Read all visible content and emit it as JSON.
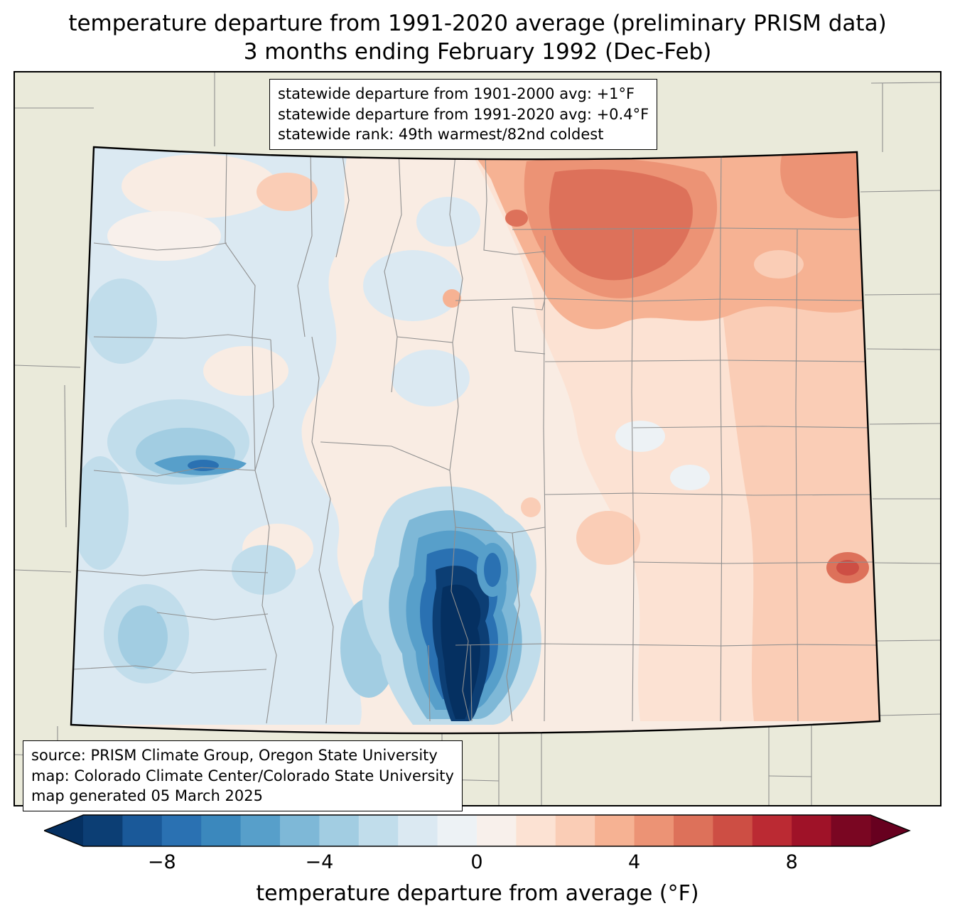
{
  "title": {
    "line1": "temperature departure from 1991-2020 average (preliminary PRISM data)",
    "line2": "3 months ending February 1992 (Dec-Feb)"
  },
  "stats_box": {
    "lines": [
      "statewide departure from 1901-2000 avg: +1°F",
      "statewide departure from 1991-2020 avg: +0.4°F",
      "statewide rank: 49th warmest/82nd coldest"
    ]
  },
  "source_box": {
    "lines": [
      "source: PRISM Climate Group, Oregon State University",
      "map: Colorado Climate Center/Colorado State University",
      "map generated 05 March 2025"
    ]
  },
  "map": {
    "state_name": "Colorado",
    "background": "#eaeada",
    "county_line_color": "#8f8f8f",
    "state_border_color": "#000000",
    "palette": {
      "base": "#f9ece3",
      "blue_faint": "#edf2f5",
      "blue_pale": "#dbe9f2",
      "blue_light": "#c1ddeb",
      "blue_med": "#a2cde2",
      "blue": "#7eb8d7",
      "blue_deep": "#579fca",
      "blue_strong": "#2a71b2",
      "navy": "#0c3e74",
      "navy_dark": "#053061",
      "pink_pale": "#f8f0eb",
      "salmon_light": "#fce2d3",
      "salmon": "#facdb6",
      "orange_light": "#f6b293",
      "orange": "#ec9375",
      "orange_deep": "#dd715a",
      "red": "#cd4e44"
    }
  },
  "colorbar": {
    "label": "temperature departure from average (°F)",
    "range": [
      -10,
      10
    ],
    "ticks": [
      {
        "value": -8,
        "label": "−8"
      },
      {
        "value": -4,
        "label": "−4"
      },
      {
        "value": 0,
        "label": "0"
      },
      {
        "value": 4,
        "label": "4"
      },
      {
        "value": 8,
        "label": "8"
      }
    ],
    "under_color": "#053061",
    "over_color": "#67001f",
    "segment_colors": [
      "#0c3e74",
      "#1a5999",
      "#2a71b2",
      "#3b88bd",
      "#579fca",
      "#7eb8d7",
      "#a2cde2",
      "#c1ddeb",
      "#dbe9f2",
      "#edf2f5",
      "#f8f0eb",
      "#fce2d3",
      "#facdb6",
      "#f6b293",
      "#ec9375",
      "#dd715a",
      "#cd4e44",
      "#bb2a33",
      "#9f1228",
      "#7a0622"
    ]
  },
  "chart_data": {
    "type": "heatmap",
    "subtype": "choropleth-climate-map",
    "region": "Colorado",
    "variable": "temperature departure from average (°F)",
    "baseline": "1991-2020 average",
    "period": "3 months ending February 1992 (Dec-Feb)",
    "data_source": "preliminary PRISM data",
    "colorbar_range": [
      -10,
      10
    ],
    "colorbar_ticks": [
      -8,
      -4,
      0,
      4,
      8
    ],
    "statewide_departure_from_1901_2000_avg_F": 1.0,
    "statewide_departure_from_1991_2020_avg_F": 0.4,
    "statewide_rank": "49th warmest/82nd coldest",
    "pattern_notes": [
      "strong cold anomaly (below -8°F) in south-central Colorado (San Luis Valley)",
      "moderate cool anomaly over western third of state",
      "warm anomaly (+2 to +6°F) over northeastern and eastern plains"
    ]
  }
}
